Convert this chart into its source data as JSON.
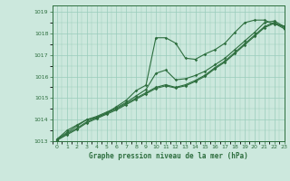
{
  "title": "Graphe pression niveau de la mer (hPa)",
  "bg_color": "#cce8dd",
  "grid_color": "#99ccbb",
  "line_color": "#2d6e3e",
  "xlim": [
    -0.5,
    23
  ],
  "ylim": [
    1013,
    1019.3
  ],
  "yticks": [
    1013,
    1014,
    1015,
    1016,
    1017,
    1018,
    1019
  ],
  "xtick_labels": [
    "0",
    "1",
    "2",
    "3",
    "4",
    "5",
    "6",
    "7",
    "8",
    "9",
    "10",
    "11",
    "12",
    "13",
    "14",
    "15",
    "16",
    "17",
    "18",
    "19",
    "20",
    "21",
    "22",
    "23"
  ],
  "series": [
    [
      1013.1,
      1013.5,
      1013.75,
      1014.0,
      1014.1,
      1014.3,
      1014.6,
      1014.9,
      1015.35,
      1015.6,
      1017.8,
      1017.8,
      1017.55,
      1016.85,
      1016.8,
      1017.05,
      1017.25,
      1017.55,
      1018.05,
      1018.5,
      1018.62,
      1018.62,
      1018.42,
      1018.35
    ],
    [
      1013.1,
      1013.4,
      1013.7,
      1014.0,
      1014.15,
      1014.35,
      1014.55,
      1014.8,
      1015.1,
      1015.4,
      1016.15,
      1016.3,
      1015.85,
      1015.9,
      1016.05,
      1016.25,
      1016.55,
      1016.85,
      1017.25,
      1017.65,
      1018.05,
      1018.5,
      1018.58,
      1018.32
    ],
    [
      1013.05,
      1013.35,
      1013.6,
      1013.9,
      1014.1,
      1014.3,
      1014.5,
      1014.75,
      1015.0,
      1015.25,
      1015.5,
      1015.62,
      1015.5,
      1015.62,
      1015.82,
      1016.07,
      1016.42,
      1016.72,
      1017.12,
      1017.52,
      1017.92,
      1018.32,
      1018.52,
      1018.27
    ],
    [
      1013.05,
      1013.3,
      1013.55,
      1013.85,
      1014.05,
      1014.25,
      1014.45,
      1014.7,
      1014.95,
      1015.2,
      1015.45,
      1015.57,
      1015.47,
      1015.57,
      1015.77,
      1016.02,
      1016.37,
      1016.67,
      1017.07,
      1017.47,
      1017.87,
      1018.27,
      1018.47,
      1018.22
    ]
  ]
}
